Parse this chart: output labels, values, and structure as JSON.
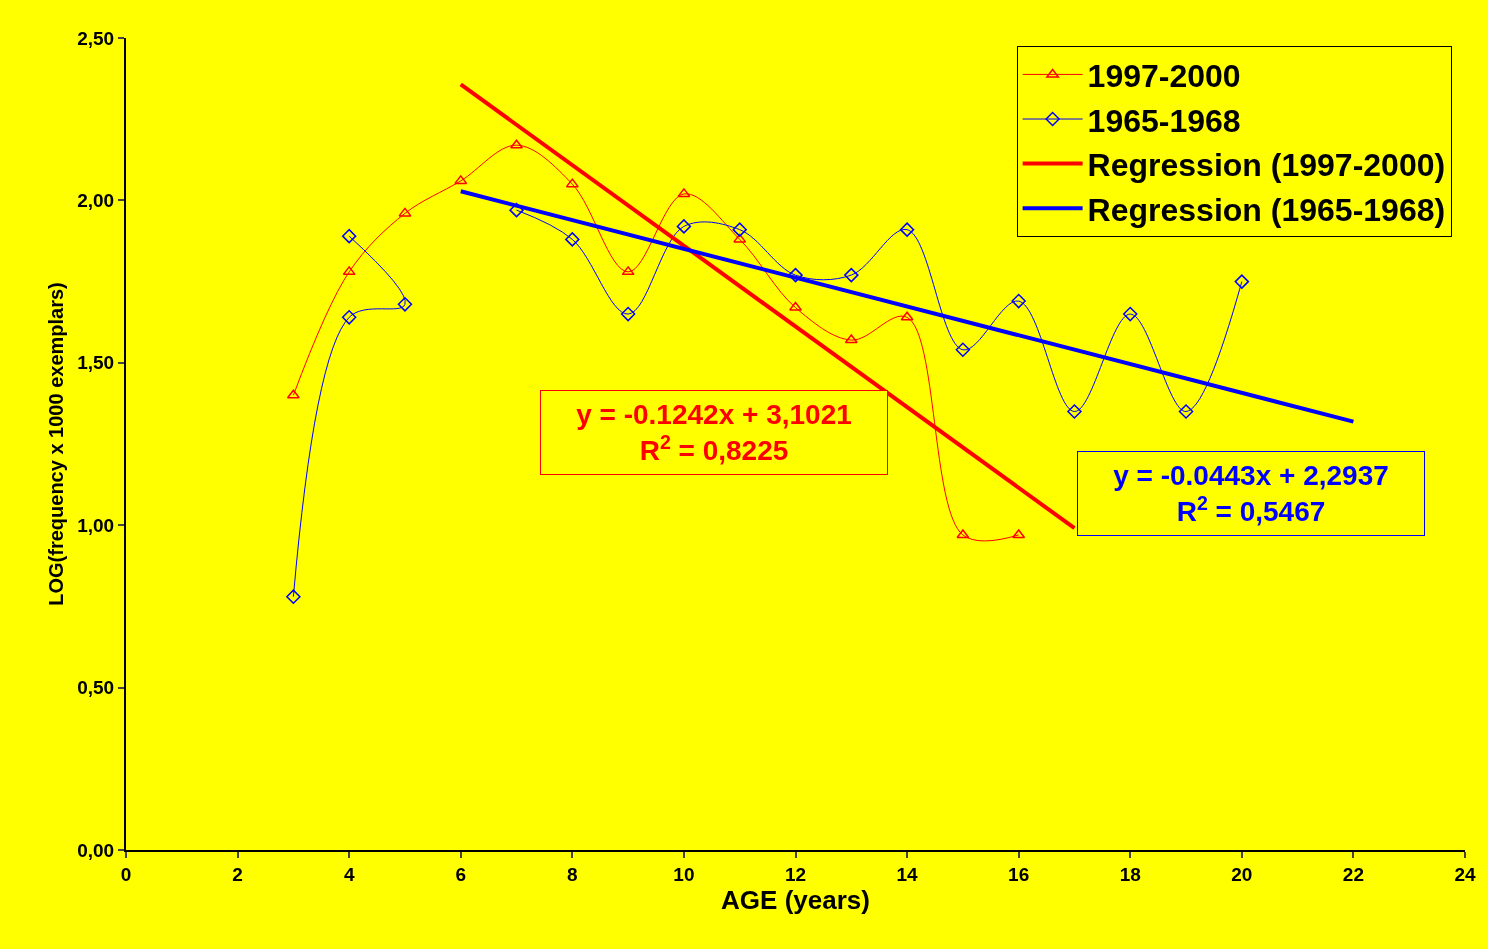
{
  "chart_data": {
    "type": "line",
    "xlabel": "AGE (years)",
    "ylabel": "LOG(frequency x 1000 exemplars)",
    "xlim": [
      0,
      24
    ],
    "xticks": [
      0,
      2,
      4,
      6,
      8,
      10,
      12,
      14,
      16,
      18,
      20,
      22,
      24
    ],
    "ylim": [
      0,
      2.5
    ],
    "yticks": [
      {
        "value": 0,
        "label": "0,00"
      },
      {
        "value": 0.5,
        "label": "0,50"
      },
      {
        "value": 1,
        "label": "1,00"
      },
      {
        "value": 1.5,
        "label": "1,50"
      },
      {
        "value": 2,
        "label": "2,00"
      },
      {
        "value": 2.5,
        "label": "2,50"
      }
    ],
    "grid": false,
    "legend": "top right",
    "series": [
      {
        "name": "1997-2000",
        "color": "#ff0000",
        "marker": "triangle",
        "x": [
          3,
          4,
          5,
          6,
          7,
          8,
          9,
          10,
          11,
          12,
          13,
          14,
          15,
          16
        ],
        "values": [
          1.4,
          1.78,
          1.96,
          2.06,
          2.17,
          2.05,
          1.78,
          2.02,
          1.88,
          1.67,
          1.57,
          1.64,
          0.97,
          0.97
        ]
      },
      {
        "name": "1965-1968",
        "color": "#0000ff",
        "marker": "diamond",
        "x": [
          3,
          4,
          5,
          4,
          6,
          7,
          8,
          9,
          10,
          11,
          12,
          13,
          14,
          15,
          16,
          17,
          18,
          19,
          20
        ],
        "values": [
          0.78,
          1.64,
          1.68,
          1.89,
          null,
          1.97,
          1.88,
          1.65,
          1.92,
          1.91,
          1.77,
          1.77,
          1.91,
          1.54,
          1.69,
          1.35,
          1.65,
          1.35,
          1.75
        ]
      },
      {
        "name": "Regression (1997-2000)",
        "color": "#ff0000",
        "marker": "none",
        "x": [
          6,
          17
        ],
        "values": [
          2.357,
          0.991
        ]
      },
      {
        "name": "Regression (1965-1968)",
        "color": "#0000ff",
        "marker": "none",
        "x": [
          6,
          22
        ],
        "values": [
          2.028,
          1.319
        ]
      }
    ],
    "annotations": [
      "y = -0.1242x + 3,1021\nR$^{2}$ = 0,8225",
      "y = -0.0443x + 2,2937\nR$^{2}$ = 0,5467"
    ]
  }
}
